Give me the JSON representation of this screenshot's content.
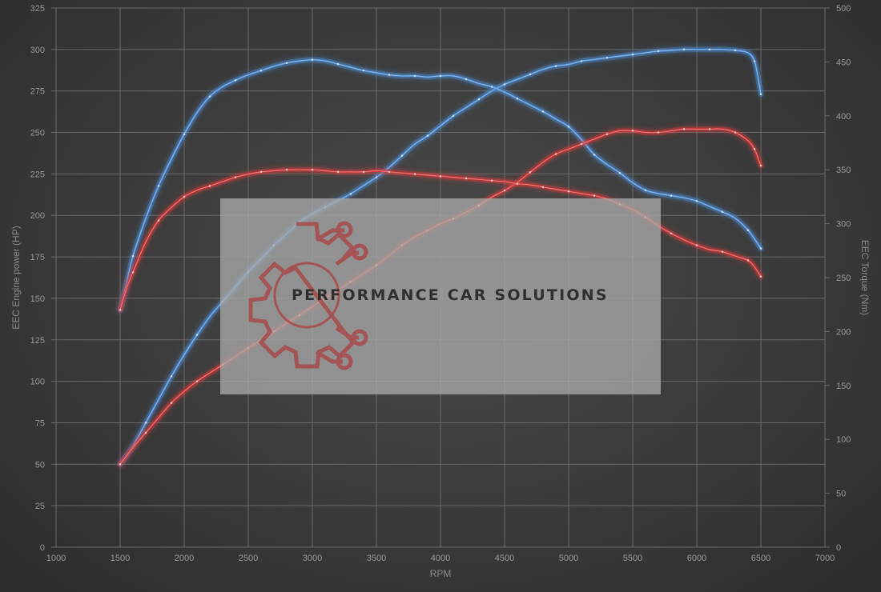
{
  "chart_data": {
    "type": "line",
    "xlabel": "RPM",
    "ylabel": "EEC Engine power (HP)",
    "y2label": "EEC Torque (Nm)",
    "xlim": [
      1000,
      7000
    ],
    "ylim": [
      0,
      325
    ],
    "y2lim": [
      0,
      500
    ],
    "x_ticks": [
      "1000",
      "1500",
      "2000",
      "2500",
      "3000",
      "3500",
      "4000",
      "4500",
      "5000",
      "5500",
      "6000",
      "6500",
      "7000"
    ],
    "y_ticks": [
      "0",
      "25",
      "50",
      "75",
      "100",
      "125",
      "150",
      "175",
      "200",
      "225",
      "250",
      "275",
      "300",
      "325"
    ],
    "y2_ticks": [
      "0",
      "50",
      "100",
      "150",
      "200",
      "250",
      "300",
      "350",
      "400",
      "450",
      "500"
    ],
    "grid": true,
    "colors": {
      "tuned": "#4d8fd9",
      "stock": "#d93a3a"
    },
    "series": [
      {
        "group": "tuned",
        "measure": "power",
        "axis": "left",
        "points": [
          [
            1500,
            50
          ],
          [
            1600,
            61
          ],
          [
            1700,
            75
          ],
          [
            1800,
            89
          ],
          [
            1900,
            103
          ],
          [
            2000,
            116
          ],
          [
            2100,
            128
          ],
          [
            2200,
            139
          ],
          [
            2300,
            148
          ],
          [
            2400,
            157
          ],
          [
            2500,
            166
          ],
          [
            2600,
            174
          ],
          [
            2700,
            182
          ],
          [
            2800,
            189
          ],
          [
            2900,
            196
          ],
          [
            3000,
            201
          ],
          [
            3100,
            205
          ],
          [
            3200,
            209
          ],
          [
            3300,
            213
          ],
          [
            3400,
            218
          ],
          [
            3500,
            223
          ],
          [
            3600,
            229
          ],
          [
            3700,
            236
          ],
          [
            3800,
            243
          ],
          [
            3900,
            248
          ],
          [
            4000,
            254
          ],
          [
            4100,
            260
          ],
          [
            4200,
            265
          ],
          [
            4300,
            270
          ],
          [
            4400,
            275
          ],
          [
            4500,
            279
          ],
          [
            4600,
            282
          ],
          [
            4700,
            285
          ],
          [
            4800,
            288
          ],
          [
            4900,
            290
          ],
          [
            5000,
            291
          ],
          [
            5100,
            293
          ],
          [
            5200,
            294
          ],
          [
            5300,
            295
          ],
          [
            5400,
            296
          ],
          [
            5500,
            297
          ],
          [
            5600,
            298
          ],
          [
            5700,
            299
          ],
          [
            5800,
            299.5
          ],
          [
            5900,
            300
          ],
          [
            6000,
            300
          ],
          [
            6100,
            300
          ],
          [
            6200,
            300
          ],
          [
            6300,
            299.5
          ],
          [
            6400,
            298
          ],
          [
            6450,
            293
          ],
          [
            6480,
            282
          ],
          [
            6500,
            273
          ]
        ]
      },
      {
        "group": "tuned",
        "measure": "torque",
        "axis": "right",
        "points": [
          [
            1500,
            220
          ],
          [
            1550,
            245
          ],
          [
            1600,
            270
          ],
          [
            1700,
            305
          ],
          [
            1800,
            335
          ],
          [
            1900,
            360
          ],
          [
            2000,
            383
          ],
          [
            2100,
            403
          ],
          [
            2200,
            418
          ],
          [
            2300,
            427
          ],
          [
            2400,
            433
          ],
          [
            2500,
            438
          ],
          [
            2600,
            442
          ],
          [
            2700,
            446
          ],
          [
            2800,
            449
          ],
          [
            2900,
            451
          ],
          [
            3000,
            452
          ],
          [
            3100,
            451
          ],
          [
            3200,
            448
          ],
          [
            3300,
            445
          ],
          [
            3400,
            442
          ],
          [
            3500,
            440
          ],
          [
            3600,
            438
          ],
          [
            3700,
            437
          ],
          [
            3800,
            437
          ],
          [
            3900,
            436
          ],
          [
            4000,
            437
          ],
          [
            4100,
            437
          ],
          [
            4200,
            434
          ],
          [
            4300,
            430
          ],
          [
            4400,
            427
          ],
          [
            4500,
            422
          ],
          [
            4600,
            416
          ],
          [
            4700,
            410
          ],
          [
            4800,
            404
          ],
          [
            4900,
            397
          ],
          [
            5000,
            390
          ],
          [
            5100,
            378
          ],
          [
            5200,
            364
          ],
          [
            5300,
            355
          ],
          [
            5400,
            347
          ],
          [
            5500,
            338
          ],
          [
            5600,
            331
          ],
          [
            5700,
            328
          ],
          [
            5800,
            326
          ],
          [
            5900,
            324
          ],
          [
            6000,
            321
          ],
          [
            6100,
            316
          ],
          [
            6200,
            311
          ],
          [
            6300,
            305
          ],
          [
            6400,
            294
          ],
          [
            6450,
            286
          ],
          [
            6500,
            277
          ]
        ]
      },
      {
        "group": "stock",
        "measure": "power",
        "axis": "left",
        "points": [
          [
            1500,
            50
          ],
          [
            1600,
            60
          ],
          [
            1700,
            69
          ],
          [
            1800,
            78
          ],
          [
            1900,
            87
          ],
          [
            2000,
            94
          ],
          [
            2100,
            100
          ],
          [
            2200,
            105
          ],
          [
            2300,
            110
          ],
          [
            2400,
            115
          ],
          [
            2500,
            120
          ],
          [
            2600,
            125
          ],
          [
            2700,
            130
          ],
          [
            2800,
            135
          ],
          [
            2900,
            140
          ],
          [
            3000,
            145
          ],
          [
            3100,
            150
          ],
          [
            3200,
            155
          ],
          [
            3300,
            160
          ],
          [
            3400,
            165
          ],
          [
            3500,
            170
          ],
          [
            3600,
            176
          ],
          [
            3700,
            182
          ],
          [
            3800,
            187
          ],
          [
            3900,
            191
          ],
          [
            4000,
            195
          ],
          [
            4100,
            198
          ],
          [
            4200,
            202
          ],
          [
            4300,
            206
          ],
          [
            4400,
            211
          ],
          [
            4500,
            215
          ],
          [
            4600,
            220
          ],
          [
            4700,
            226
          ],
          [
            4800,
            232
          ],
          [
            4900,
            237
          ],
          [
            5000,
            240
          ],
          [
            5100,
            243
          ],
          [
            5200,
            246
          ],
          [
            5300,
            249
          ],
          [
            5400,
            251
          ],
          [
            5500,
            251
          ],
          [
            5600,
            250
          ],
          [
            5700,
            250
          ],
          [
            5800,
            251
          ],
          [
            5900,
            252
          ],
          [
            6000,
            252
          ],
          [
            6100,
            252
          ],
          [
            6200,
            252
          ],
          [
            6300,
            250
          ],
          [
            6400,
            245
          ],
          [
            6450,
            240
          ],
          [
            6480,
            234
          ],
          [
            6500,
            230
          ]
        ]
      },
      {
        "group": "stock",
        "measure": "torque",
        "axis": "right",
        "points": [
          [
            1500,
            220
          ],
          [
            1550,
            240
          ],
          [
            1600,
            255
          ],
          [
            1700,
            283
          ],
          [
            1800,
            303
          ],
          [
            1900,
            315
          ],
          [
            2000,
            325
          ],
          [
            2100,
            331
          ],
          [
            2200,
            335
          ],
          [
            2300,
            339
          ],
          [
            2400,
            343
          ],
          [
            2500,
            346
          ],
          [
            2600,
            348
          ],
          [
            2700,
            349
          ],
          [
            2800,
            350
          ],
          [
            2900,
            350
          ],
          [
            3000,
            350
          ],
          [
            3100,
            349
          ],
          [
            3200,
            348
          ],
          [
            3300,
            348
          ],
          [
            3400,
            348
          ],
          [
            3500,
            349
          ],
          [
            3600,
            348
          ],
          [
            3700,
            347
          ],
          [
            3800,
            346
          ],
          [
            3900,
            345
          ],
          [
            4000,
            344
          ],
          [
            4100,
            343
          ],
          [
            4200,
            342
          ],
          [
            4300,
            341
          ],
          [
            4400,
            340
          ],
          [
            4500,
            339
          ],
          [
            4600,
            337
          ],
          [
            4700,
            336
          ],
          [
            4800,
            334
          ],
          [
            4900,
            332
          ],
          [
            5000,
            330
          ],
          [
            5100,
            328
          ],
          [
            5200,
            326
          ],
          [
            5300,
            323
          ],
          [
            5400,
            318
          ],
          [
            5500,
            313
          ],
          [
            5600,
            306
          ],
          [
            5700,
            298
          ],
          [
            5800,
            291
          ],
          [
            5900,
            285
          ],
          [
            6000,
            280
          ],
          [
            6100,
            276
          ],
          [
            6200,
            274
          ],
          [
            6300,
            270
          ],
          [
            6400,
            266
          ],
          [
            6450,
            260
          ],
          [
            6500,
            251
          ]
        ]
      }
    ]
  },
  "watermark": {
    "text": "PERFORMANCE CAR SOLUTIONS",
    "logo_icon": "gear-circuit-logo-icon"
  }
}
